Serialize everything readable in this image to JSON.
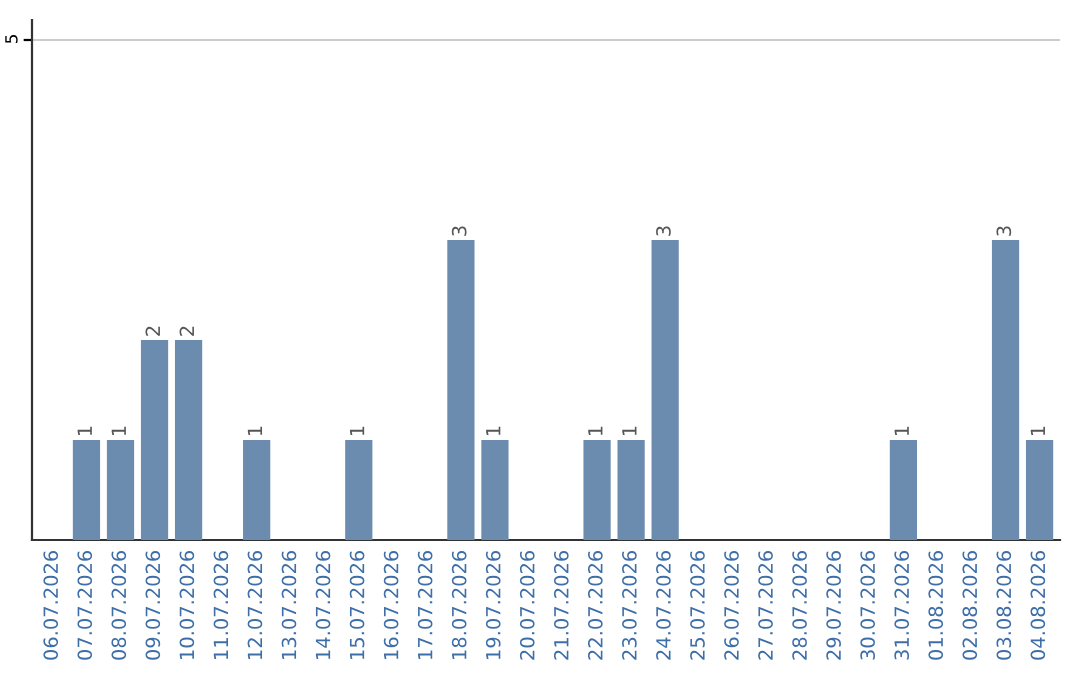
{
  "chart_data": {
    "type": "bar",
    "categories": [
      "06.07.2026",
      "07.07.2026",
      "08.07.2026",
      "09.07.2026",
      "10.07.2026",
      "11.07.2026",
      "12.07.2026",
      "13.07.2026",
      "14.07.2026",
      "15.07.2026",
      "16.07.2026",
      "17.07.2026",
      "18.07.2026",
      "19.07.2026",
      "20.07.2026",
      "21.07.2026",
      "22.07.2026",
      "23.07.2026",
      "24.07.2026",
      "25.07.2026",
      "26.07.2026",
      "27.07.2026",
      "28.07.2026",
      "29.07.2026",
      "30.07.2026",
      "31.07.2026",
      "01.08.2026",
      "02.08.2026",
      "03.08.2026",
      "04.08.2026"
    ],
    "values": [
      0,
      1,
      1,
      2,
      2,
      0,
      1,
      0,
      0,
      1,
      0,
      0,
      3,
      1,
      0,
      0,
      1,
      1,
      3,
      0,
      0,
      0,
      0,
      0,
      0,
      1,
      0,
      0,
      3,
      1
    ],
    "value_labels": [
      null,
      "1",
      "1",
      "2",
      "2",
      null,
      "1",
      null,
      null,
      "1",
      null,
      null,
      "3",
      "1",
      null,
      null,
      "1",
      "1",
      "3",
      null,
      null,
      null,
      null,
      null,
      null,
      "1",
      null,
      null,
      "3",
      "1"
    ],
    "color": "#6b8cae",
    "ylim": [
      0,
      5.2
    ],
    "yticks": [
      5
    ],
    "grid": "y"
  }
}
